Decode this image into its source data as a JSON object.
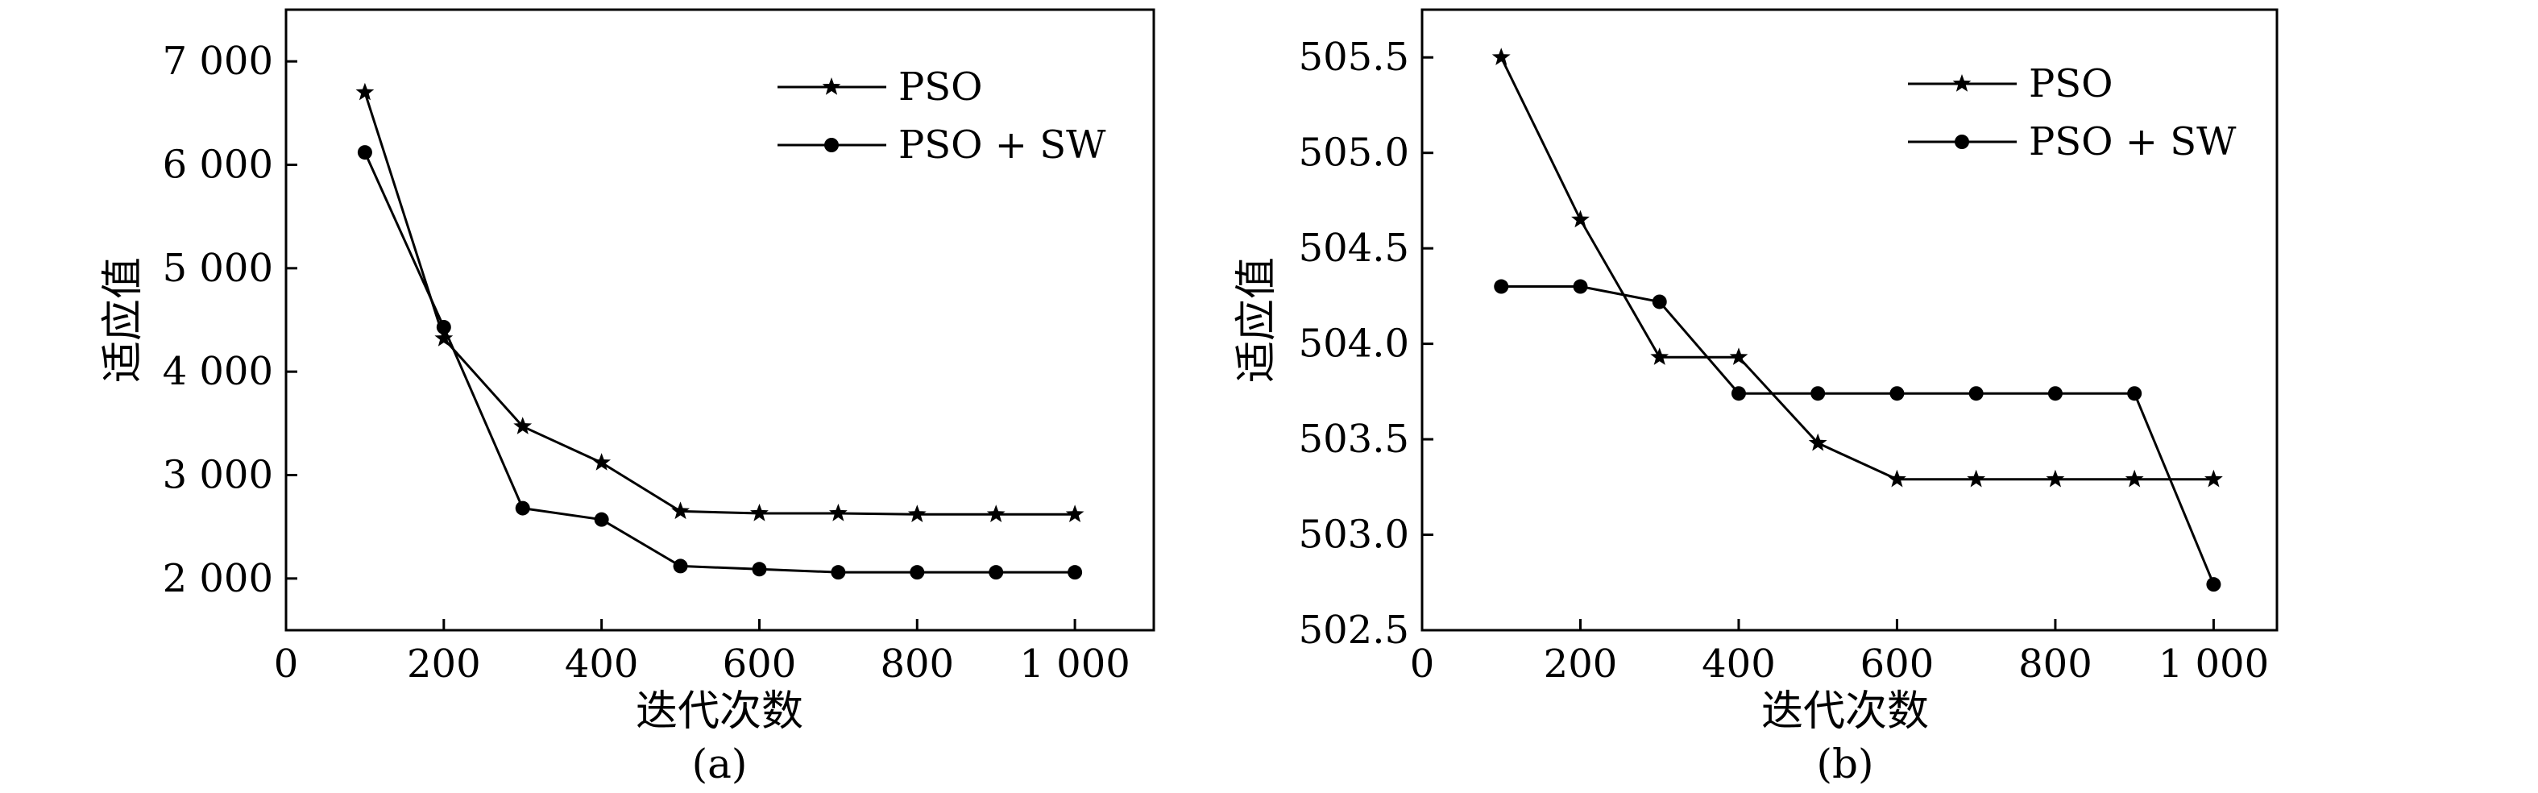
{
  "chart_data": [
    {
      "type": "line",
      "caption": "(a)",
      "xlabel": "迭代次数",
      "ylabel": "适应值",
      "xlim": [
        0,
        1100
      ],
      "ylim": [
        1500,
        7500
      ],
      "xticks": [
        0,
        200,
        400,
        600,
        800,
        1000
      ],
      "xtick_labels": [
        "0",
        "200",
        "400",
        "600",
        "800",
        "1 000"
      ],
      "yticks": [
        2000,
        3000,
        4000,
        5000,
        6000,
        7000
      ],
      "ytick_labels": [
        "2 000",
        "3 000",
        "4 000",
        "5 000",
        "6 000",
        "7 000"
      ],
      "legend_position": "top-right",
      "x": [
        100,
        200,
        300,
        400,
        500,
        600,
        700,
        800,
        900,
        1000
      ],
      "series": [
        {
          "name": "PSO",
          "marker": "star",
          "values": [
            6700,
            4320,
            3470,
            3120,
            2650,
            2630,
            2630,
            2620,
            2620,
            2620
          ]
        },
        {
          "name": "PSO + SW",
          "marker": "circle",
          "values": [
            6120,
            4430,
            2680,
            2570,
            2120,
            2090,
            2060,
            2060,
            2060,
            2060
          ]
        }
      ]
    },
    {
      "type": "line",
      "caption": "(b)",
      "xlabel": "迭代次数",
      "ylabel": "适应值",
      "xlim": [
        0,
        1080
      ],
      "ylim": [
        502.5,
        505.75
      ],
      "xticks": [
        0,
        200,
        400,
        600,
        800,
        1000
      ],
      "xtick_labels": [
        "0",
        "200",
        "400",
        "600",
        "800",
        "1 000"
      ],
      "yticks": [
        502.5,
        503.0,
        503.5,
        504.0,
        504.5,
        505.0,
        505.5
      ],
      "ytick_labels": [
        "502.5",
        "503.0",
        "503.5",
        "504.0",
        "504.5",
        "505.0",
        "505.5"
      ],
      "legend_position": "top-right",
      "x": [
        100,
        200,
        300,
        400,
        500,
        600,
        700,
        800,
        900,
        1000
      ],
      "series": [
        {
          "name": "PSO",
          "marker": "star",
          "values": [
            505.5,
            504.65,
            503.93,
            503.93,
            503.48,
            503.29,
            503.29,
            503.29,
            503.29,
            503.29
          ]
        },
        {
          "name": "PSO + SW",
          "marker": "circle",
          "values": [
            504.3,
            504.3,
            504.22,
            503.74,
            503.74,
            503.74,
            503.74,
            503.74,
            503.74,
            502.74
          ]
        }
      ]
    }
  ]
}
